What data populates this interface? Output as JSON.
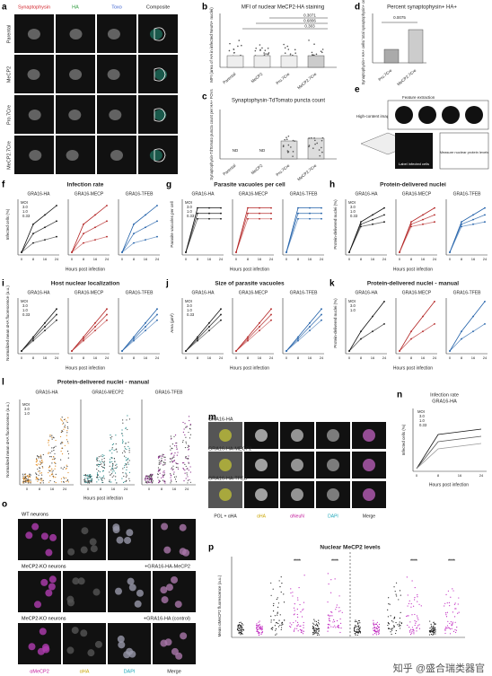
{
  "panel_a": {
    "letter": "a",
    "columns": [
      "Synaptophysin",
      "HA",
      "Toxo",
      "Composite"
    ],
    "rows": [
      "Parental",
      "MeCP2",
      "Pro.7Cre",
      "MeCP2.7Cre"
    ]
  },
  "panel_b": {
    "letter": "b",
    "title": "MFI of nuclear MeCP2-HA staining",
    "y_label": "MFI (area of HA in infected NeuN+ nuclei)",
    "p_values": [
      "0.3071",
      "0.6806",
      "0.303"
    ],
    "categories": [
      "Parental",
      "MeCP2",
      "Pro.7Cre",
      "MeCP2.7Cre"
    ]
  },
  "panel_c": {
    "letter": "c",
    "title": "Synaptophysin-TdTomato puncta count",
    "y_label": "Synaptophysin-TdTomato puncta count per HA+ FOVs",
    "nd": "ND",
    "categories": [
      "Parental",
      "MeCP2",
      "Pro.7Cre",
      "MeCP2.7Cre"
    ]
  },
  "panel_d": {
    "letter": "d",
    "title": "Percent synaptophysin+ HA+",
    "p_value": "0.0075",
    "y_label": "Synaptophysin+ HA+ cells/ total synaptophysin+ cells",
    "categories": [
      "Pro.7Cre",
      "MeCP2.7Cre"
    ]
  },
  "panel_e": {
    "letter": "e",
    "steps": [
      "High-content imaging",
      "Feature extraction",
      "Label infected cells",
      "Measure nuclear protein levels"
    ]
  },
  "x_ticks": [
    "0",
    "8",
    "16",
    "24"
  ],
  "panel_f": {
    "letter": "f",
    "title": "Infection rate",
    "y_label": "Infected cells (%)",
    "x_label": "Hours post infection",
    "subpanels": [
      "GRA16-HA",
      "GRA16-MECP",
      "GRA16-TFEB"
    ],
    "legend_title": "MOI",
    "legend": [
      "3.0",
      "1.0",
      "0.33"
    ]
  },
  "panel_g": {
    "letter": "g",
    "title": "Parasite vacuoles per cell",
    "y_label": "Parasite vacuoles per cell",
    "x_label": "Hours post infection",
    "subpanels": [
      "GRA16-HA",
      "GRA16-MECP",
      "GRA16-TFEB"
    ],
    "legend_title": "MOI",
    "legend": [
      "3.0",
      "1.0",
      "0.33"
    ]
  },
  "panel_h": {
    "letter": "h",
    "title": "Protein-delivered nuclei",
    "y_label": "Protein-delivered nuclei (%)",
    "x_label": "Hours post infection",
    "subpanels": [
      "GRA16-HA",
      "GRA16-MECP",
      "GRA16-TFEB"
    ],
    "legend_title": "MOI",
    "legend": [
      "3.0",
      "1.0",
      "0.33"
    ]
  },
  "panel_i": {
    "letter": "i",
    "title": "Host nuclear localization",
    "y_label": "Normalized mean αHA fluorescence (a.u.)",
    "x_label": "Hours post infection",
    "subpanels": [
      "GRA16-HA",
      "GRA16-MECP",
      "GRA16-TFEB"
    ],
    "legend_title": "MOI",
    "legend": [
      "3.0",
      "1.0",
      "0.33"
    ]
  },
  "panel_j": {
    "letter": "j",
    "title": "Size of parasite vacuoles",
    "y_label": "Area (μm²)",
    "x_label": "Hours post infection",
    "subpanels": [
      "GRA16-HA",
      "GRA16-MECP",
      "GRA16-TFEB"
    ],
    "legend_title": "MOI",
    "legend": [
      "3.0",
      "1.0",
      "0.33"
    ]
  },
  "panel_k": {
    "letter": "k",
    "title": "Protein-delivered nuclei - manual",
    "y_label": "Protein-delivered nuclei (%)",
    "x_label": "Hours post infection",
    "subpanels": [
      "GRA16-HA",
      "GRA16-MECP",
      "GRA16-TFEB"
    ],
    "legend_title": "MOI",
    "legend": [
      "3.0",
      "1.0"
    ]
  },
  "panel_l": {
    "letter": "l",
    "title": "Protein-delivered nuclei - manual",
    "y_label": "Normalized mean αHA fluorescence (a.u.)",
    "x_label": "Hours post infection",
    "subpanels": [
      "GRA16-HA",
      "GRA16-MECP2",
      "GRA16-TFEB"
    ],
    "legend_title": "MOI",
    "legend": [
      "3.0",
      "1.0"
    ]
  },
  "panel_m": {
    "letter": "m",
    "rows": [
      "GRA16-HA",
      "GRA16-HA-MECP2",
      "GRA16-HA-TFEB"
    ],
    "columns": [
      "POL + αHA",
      "αHA",
      "αNeuN",
      "DAPI",
      "Merge"
    ]
  },
  "panel_n": {
    "letter": "n",
    "title": "Infection rate",
    "subtitle": "GRA16-HA",
    "y_label": "Infected cells (%)",
    "x_label": "Hours post infection",
    "legend_title": "MOI",
    "legend": [
      "3.0",
      "1.0",
      "0.33"
    ]
  },
  "panel_o": {
    "letter": "o",
    "rows": [
      "WT neurons",
      "MeCP2-KO neurons",
      "MeCP2-KO neurons"
    ],
    "row_notes": [
      "+GRA16-HA-MeCP2",
      "+GRA16-HA (control)"
    ],
    "columns": [
      "αMeCP2",
      "αHA",
      "DAPI",
      "Merge"
    ]
  },
  "panel_p": {
    "letter": "p",
    "title": "Nuclear MeCP2 levels",
    "y_label": "Mean αMeCP2 fluorescence (a.u.)",
    "stars": "****"
  },
  "watermark": "知乎 @盛合瑞类器官"
}
